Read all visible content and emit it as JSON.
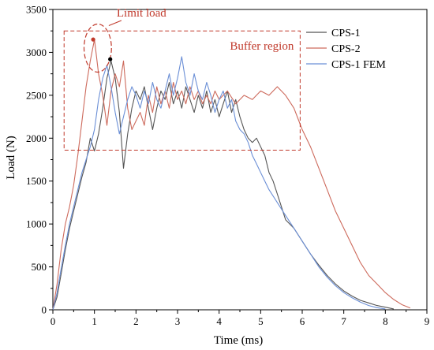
{
  "chart_data": {
    "type": "line",
    "title": "",
    "xlabel": "Time (ms)",
    "ylabel": "Load (N)",
    "xlim": [
      0,
      9
    ],
    "ylim": [
      0,
      3500
    ],
    "xticks": [
      0,
      1,
      2,
      3,
      4,
      5,
      6,
      7,
      8,
      9
    ],
    "yticks": [
      0,
      500,
      1000,
      1500,
      2000,
      2500,
      3000,
      3500
    ],
    "grid": false,
    "legend": {
      "placement": "top-right"
    },
    "series": [
      {
        "name": "CPS-1",
        "color": "#555555",
        "points": [
          [
            0,
            0
          ],
          [
            0.1,
            150
          ],
          [
            0.2,
            420
          ],
          [
            0.3,
            700
          ],
          [
            0.4,
            950
          ],
          [
            0.5,
            1150
          ],
          [
            0.6,
            1350
          ],
          [
            0.7,
            1550
          ],
          [
            0.8,
            1720
          ],
          [
            0.9,
            2000
          ],
          [
            1.0,
            1850
          ],
          [
            1.1,
            2050
          ],
          [
            1.2,
            2350
          ],
          [
            1.3,
            2700
          ],
          [
            1.4,
            2900
          ],
          [
            1.5,
            2700
          ],
          [
            1.6,
            2300
          ],
          [
            1.7,
            1650
          ],
          [
            1.8,
            2050
          ],
          [
            1.9,
            2350
          ],
          [
            2.0,
            2550
          ],
          [
            2.1,
            2450
          ],
          [
            2.2,
            2600
          ],
          [
            2.3,
            2350
          ],
          [
            2.4,
            2100
          ],
          [
            2.5,
            2350
          ],
          [
            2.6,
            2550
          ],
          [
            2.7,
            2450
          ],
          [
            2.8,
            2650
          ],
          [
            2.9,
            2400
          ],
          [
            3.0,
            2550
          ],
          [
            3.1,
            2350
          ],
          [
            3.2,
            2600
          ],
          [
            3.3,
            2450
          ],
          [
            3.4,
            2300
          ],
          [
            3.5,
            2500
          ],
          [
            3.6,
            2350
          ],
          [
            3.7,
            2550
          ],
          [
            3.8,
            2300
          ],
          [
            3.9,
            2450
          ],
          [
            4.0,
            2250
          ],
          [
            4.1,
            2400
          ],
          [
            4.2,
            2550
          ],
          [
            4.3,
            2300
          ],
          [
            4.4,
            2450
          ],
          [
            4.5,
            2250
          ],
          [
            4.6,
            2100
          ],
          [
            4.7,
            2000
          ],
          [
            4.8,
            1950
          ],
          [
            4.9,
            2000
          ],
          [
            5.0,
            1900
          ],
          [
            5.1,
            1800
          ],
          [
            5.2,
            1600
          ],
          [
            5.3,
            1500
          ],
          [
            5.4,
            1350
          ],
          [
            5.5,
            1200
          ],
          [
            5.6,
            1050
          ],
          [
            5.8,
            950
          ],
          [
            6.0,
            800
          ],
          [
            6.2,
            650
          ],
          [
            6.4,
            520
          ],
          [
            6.6,
            400
          ],
          [
            6.8,
            300
          ],
          [
            7.0,
            220
          ],
          [
            7.2,
            160
          ],
          [
            7.4,
            110
          ],
          [
            7.6,
            80
          ],
          [
            7.8,
            50
          ],
          [
            8.0,
            30
          ],
          [
            8.2,
            10
          ]
        ]
      },
      {
        "name": "CPS-2",
        "color": "#cd6a5c",
        "points": [
          [
            0,
            0
          ],
          [
            0.1,
            300
          ],
          [
            0.2,
            700
          ],
          [
            0.3,
            1000
          ],
          [
            0.4,
            1200
          ],
          [
            0.5,
            1450
          ],
          [
            0.6,
            1800
          ],
          [
            0.7,
            2200
          ],
          [
            0.8,
            2600
          ],
          [
            0.9,
            2900
          ],
          [
            1.0,
            3150
          ],
          [
            1.1,
            2750
          ],
          [
            1.2,
            2500
          ],
          [
            1.3,
            2150
          ],
          [
            1.4,
            2550
          ],
          [
            1.5,
            2750
          ],
          [
            1.6,
            2600
          ],
          [
            1.7,
            2900
          ],
          [
            1.8,
            2350
          ],
          [
            1.9,
            2100
          ],
          [
            2.0,
            2200
          ],
          [
            2.1,
            2300
          ],
          [
            2.2,
            2150
          ],
          [
            2.3,
            2500
          ],
          [
            2.4,
            2300
          ],
          [
            2.5,
            2600
          ],
          [
            2.6,
            2400
          ],
          [
            2.7,
            2550
          ],
          [
            2.8,
            2350
          ],
          [
            2.9,
            2650
          ],
          [
            3.0,
            2450
          ],
          [
            3.1,
            2550
          ],
          [
            3.2,
            2400
          ],
          [
            3.3,
            2600
          ],
          [
            3.4,
            2450
          ],
          [
            3.5,
            2550
          ],
          [
            3.6,
            2400
          ],
          [
            3.7,
            2500
          ],
          [
            3.8,
            2400
          ],
          [
            3.9,
            2550
          ],
          [
            4.0,
            2450
          ],
          [
            4.2,
            2550
          ],
          [
            4.4,
            2400
          ],
          [
            4.6,
            2500
          ],
          [
            4.8,
            2450
          ],
          [
            5.0,
            2550
          ],
          [
            5.2,
            2500
          ],
          [
            5.4,
            2600
          ],
          [
            5.6,
            2500
          ],
          [
            5.8,
            2350
          ],
          [
            6.0,
            2100
          ],
          [
            6.2,
            1900
          ],
          [
            6.4,
            1650
          ],
          [
            6.6,
            1400
          ],
          [
            6.8,
            1150
          ],
          [
            7.0,
            950
          ],
          [
            7.2,
            750
          ],
          [
            7.4,
            550
          ],
          [
            7.6,
            400
          ],
          [
            7.8,
            300
          ],
          [
            8.0,
            200
          ],
          [
            8.2,
            120
          ],
          [
            8.4,
            60
          ],
          [
            8.6,
            20
          ]
        ]
      },
      {
        "name": "CPS-1 FEM",
        "color": "#6b8fd6",
        "points": [
          [
            0,
            0
          ],
          [
            0.1,
            200
          ],
          [
            0.2,
            480
          ],
          [
            0.3,
            750
          ],
          [
            0.4,
            1000
          ],
          [
            0.5,
            1200
          ],
          [
            0.6,
            1400
          ],
          [
            0.7,
            1600
          ],
          [
            0.8,
            1750
          ],
          [
            0.9,
            1900
          ],
          [
            1.0,
            2100
          ],
          [
            1.1,
            2450
          ],
          [
            1.2,
            2700
          ],
          [
            1.3,
            2850
          ],
          [
            1.4,
            2600
          ],
          [
            1.5,
            2300
          ],
          [
            1.6,
            2050
          ],
          [
            1.7,
            2250
          ],
          [
            1.8,
            2450
          ],
          [
            1.9,
            2600
          ],
          [
            2.0,
            2500
          ],
          [
            2.1,
            2350
          ],
          [
            2.2,
            2550
          ],
          [
            2.3,
            2400
          ],
          [
            2.4,
            2650
          ],
          [
            2.5,
            2450
          ],
          [
            2.6,
            2350
          ],
          [
            2.7,
            2550
          ],
          [
            2.8,
            2750
          ],
          [
            2.9,
            2500
          ],
          [
            3.0,
            2700
          ],
          [
            3.1,
            2950
          ],
          [
            3.2,
            2650
          ],
          [
            3.3,
            2500
          ],
          [
            3.4,
            2750
          ],
          [
            3.5,
            2550
          ],
          [
            3.6,
            2450
          ],
          [
            3.7,
            2650
          ],
          [
            3.8,
            2500
          ],
          [
            3.9,
            2300
          ],
          [
            4.0,
            2450
          ],
          [
            4.1,
            2550
          ],
          [
            4.2,
            2350
          ],
          [
            4.3,
            2450
          ],
          [
            4.4,
            2200
          ],
          [
            4.5,
            2100
          ],
          [
            4.6,
            2050
          ],
          [
            4.7,
            1950
          ],
          [
            4.8,
            1800
          ],
          [
            4.9,
            1700
          ],
          [
            5.0,
            1600
          ],
          [
            5.1,
            1500
          ],
          [
            5.2,
            1400
          ],
          [
            5.4,
            1250
          ],
          [
            5.6,
            1100
          ],
          [
            5.8,
            950
          ],
          [
            6.0,
            800
          ],
          [
            6.2,
            650
          ],
          [
            6.4,
            500
          ],
          [
            6.6,
            380
          ],
          [
            6.8,
            280
          ],
          [
            7.0,
            200
          ],
          [
            7.2,
            140
          ],
          [
            7.4,
            90
          ],
          [
            7.6,
            50
          ],
          [
            7.8,
            25
          ],
          [
            8.0,
            10
          ]
        ]
      }
    ],
    "annotations": {
      "limit_load": {
        "label": "Limit load",
        "color": "#c0392b"
      },
      "buffer_region": {
        "label": "Buffer region",
        "color": "#c0392b",
        "x0": 0.27,
        "x1": 5.95,
        "y0": 1860,
        "y1": 3250
      },
      "limit_points": [
        {
          "x": 0.97,
          "y": 3150,
          "color": "#c0392b"
        },
        {
          "x": 1.38,
          "y": 2920,
          "color": "#000000"
        }
      ],
      "limit_ellipse": {
        "cx": 1.08,
        "cy": 3050,
        "rx": 0.33,
        "ry": 280
      }
    }
  }
}
